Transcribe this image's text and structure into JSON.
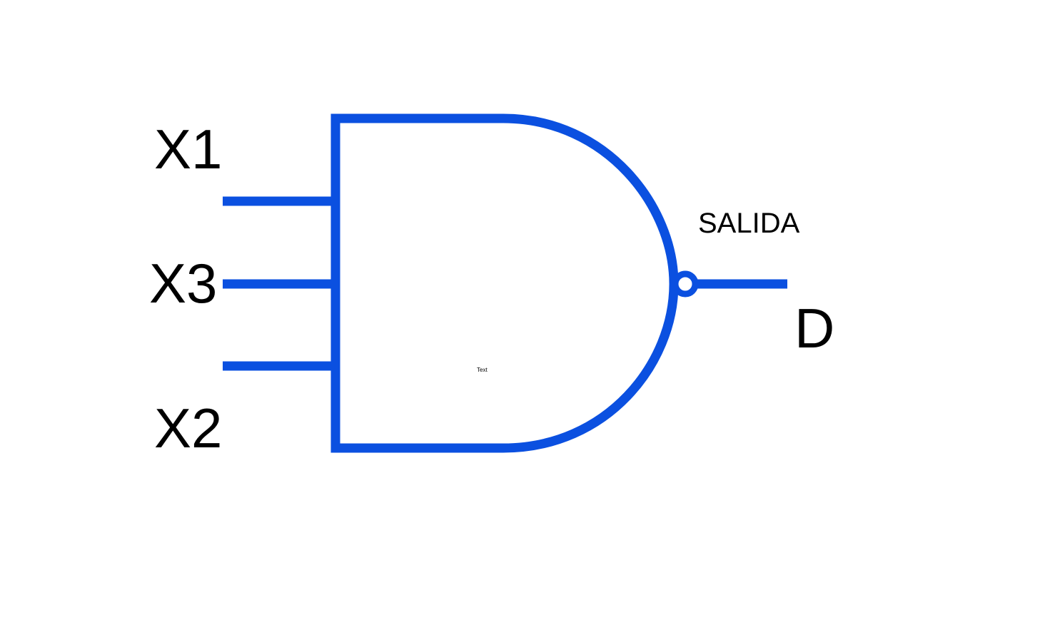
{
  "diagram": {
    "gate_type": "NAND",
    "inputs": [
      {
        "label": "X1"
      },
      {
        "label": "X3"
      },
      {
        "label": "X2"
      }
    ],
    "output_caption": "SALIDA",
    "output_label": "D",
    "placeholder_text": "Text"
  },
  "colors": {
    "stroke": "#0b50e0",
    "text": "#000000",
    "background": "#ffffff"
  }
}
